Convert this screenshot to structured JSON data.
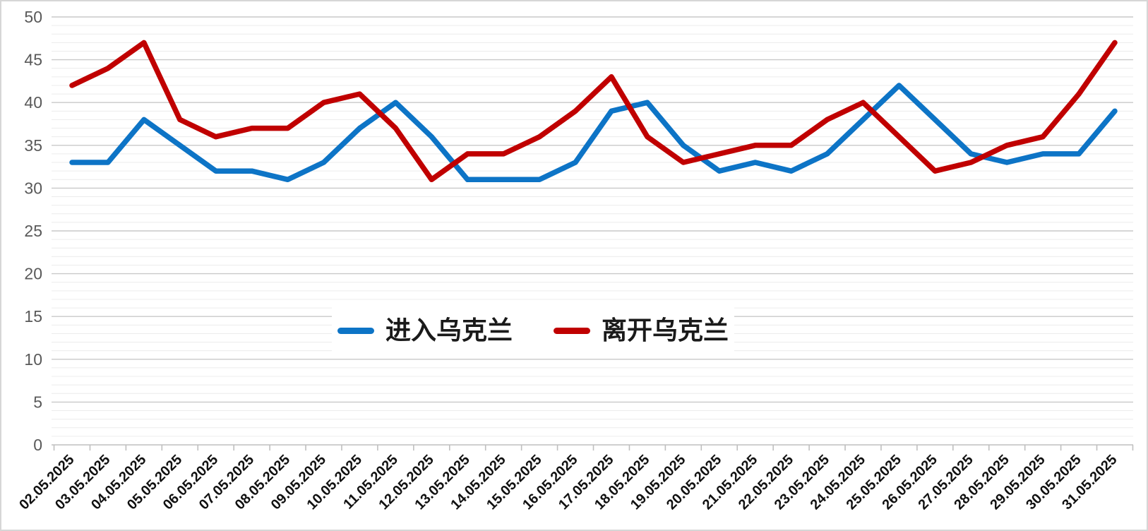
{
  "chart_data": {
    "type": "line",
    "title": "",
    "xlabel": "",
    "ylabel": "",
    "categories": [
      "02.05.2025",
      "03.05.2025",
      "04.05.2025",
      "05.05.2025",
      "06.05.2025",
      "07.05.2025",
      "08.05.2025",
      "09.05.2025",
      "10.05.2025",
      "11.05.2025",
      "12.05.2025",
      "13.05.2025",
      "14.05.2025",
      "15.05.2025",
      "16.05.2025",
      "17.05.2025",
      "18.05.2025",
      "19.05.2025",
      "20.05.2025",
      "21.05.2025",
      "22.05.2025",
      "23.05.2025",
      "24.05.2025",
      "25.05.2025",
      "26.05.2025",
      "27.05.2025",
      "28.05.2025",
      "29.05.2025",
      "30.05.2025",
      "31.05.2025"
    ],
    "series": [
      {
        "name": "进入乌克兰",
        "color": "#0d74c6",
        "values": [
          33,
          33,
          38,
          35,
          32,
          32,
          31,
          33,
          37,
          40,
          36,
          31,
          31,
          31,
          33,
          39,
          40,
          35,
          32,
          33,
          32,
          34,
          38,
          42,
          38,
          34,
          33,
          34,
          34,
          39
        ]
      },
      {
        "name": "离开乌克兰",
        "color": "#c00000",
        "values": [
          42,
          44,
          47,
          38,
          36,
          37,
          37,
          40,
          41,
          37,
          31,
          34,
          34,
          36,
          39,
          43,
          36,
          33,
          34,
          35,
          35,
          38,
          40,
          36,
          32,
          33,
          35,
          36,
          41,
          47
        ]
      }
    ],
    "ylim": [
      0,
      50
    ],
    "y_major_step": 5,
    "y_minor_step": 1,
    "y_tick_labels": [
      "0",
      "5",
      "10",
      "15",
      "20",
      "25",
      "30",
      "35",
      "40",
      "45",
      "50"
    ],
    "grid": "horizontal minor+major",
    "legend_position": "center-middle",
    "colors": {
      "major_gridline": "#c9c9c9",
      "minor_gridline": "#ececec",
      "axis_line": "#bfbfbf",
      "y_label": "#595959",
      "x_label": "#111111"
    }
  }
}
